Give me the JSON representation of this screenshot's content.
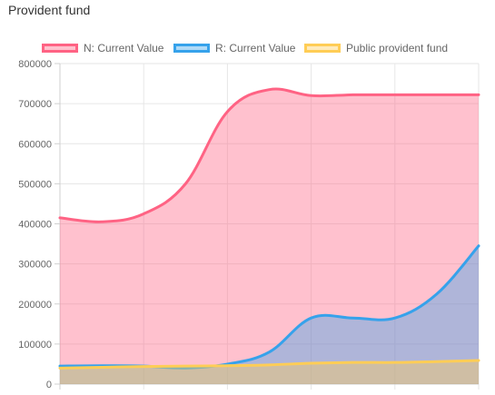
{
  "title": "Provident fund",
  "chart_data": {
    "type": "area",
    "title": "Provident fund",
    "xlabel": "",
    "ylabel": "",
    "ylim": [
      0,
      800000
    ],
    "yticks": [
      0,
      100000,
      200000,
      300000,
      400000,
      500000,
      600000,
      700000,
      800000
    ],
    "x": [
      0,
      1,
      2,
      3,
      4,
      5,
      6,
      7,
      8,
      9,
      10
    ],
    "legend_position": "top",
    "grid": true,
    "series": [
      {
        "name": "N: Current Value",
        "color": "#ff6384",
        "fill": "rgba(255,99,132,0.4)",
        "values": [
          415000,
          405000,
          425000,
          500000,
          680000,
          735000,
          720000,
          722000,
          722000,
          722000,
          722000
        ]
      },
      {
        "name": "R: Current Value",
        "color": "#36a2eb",
        "fill": "rgba(54,162,235,0.4)",
        "values": [
          45000,
          46000,
          45000,
          40000,
          50000,
          80000,
          165000,
          165000,
          165000,
          225000,
          345000
        ]
      },
      {
        "name": "Public provident fund",
        "color": "#ffcd56",
        "fill": "rgba(255,205,86,0.4)",
        "values": [
          40000,
          42000,
          44000,
          45000,
          46000,
          48000,
          52000,
          54000,
          54000,
          56000,
          59000
        ]
      }
    ]
  }
}
